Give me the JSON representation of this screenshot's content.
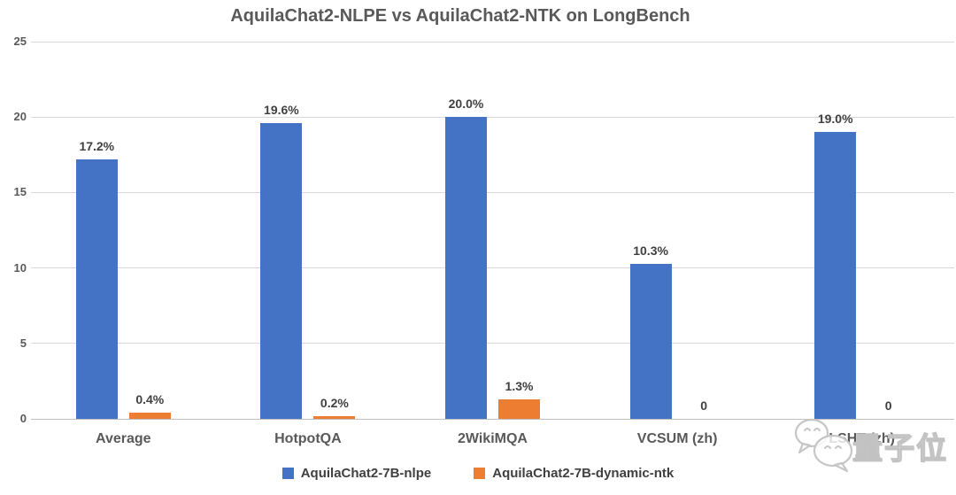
{
  "chart_data": {
    "type": "bar",
    "title": "AquilaChat2-NLPE vs AquilaChat2-NTK on LongBench",
    "categories": [
      "Average",
      "HotpotQA",
      "2WikiMQA",
      "VCSUM (zh)",
      "LSHT (zh)"
    ],
    "series": [
      {
        "name": "AquilaChat2-7B-nlpe",
        "color": "#4472C4",
        "values": [
          17.2,
          19.6,
          20.0,
          10.3,
          19.0
        ],
        "labels": [
          "17.2%",
          "19.6%",
          "20.0%",
          "10.3%",
          "19.0%"
        ]
      },
      {
        "name": "AquilaChat2-7B-dynamic-ntk",
        "color": "#ED7D31",
        "values": [
          0.4,
          0.2,
          1.3,
          0,
          0
        ],
        "labels": [
          "0.4%",
          "0.2%",
          "1.3%",
          "0",
          "0"
        ]
      }
    ],
    "ylim": [
      0,
      25
    ],
    "yticks": [
      0,
      5,
      10,
      15,
      20,
      25
    ],
    "grid": true,
    "legend_position": "bottom"
  },
  "colors": {
    "gridline": "#d9d9d9",
    "axis_line": "#bfbfbf",
    "title_text": "#595959",
    "tick_text": "#595959",
    "data_label_text": "#404040"
  },
  "watermark": {
    "text": "量子位",
    "icon": "chat-bubbles-icon"
  }
}
